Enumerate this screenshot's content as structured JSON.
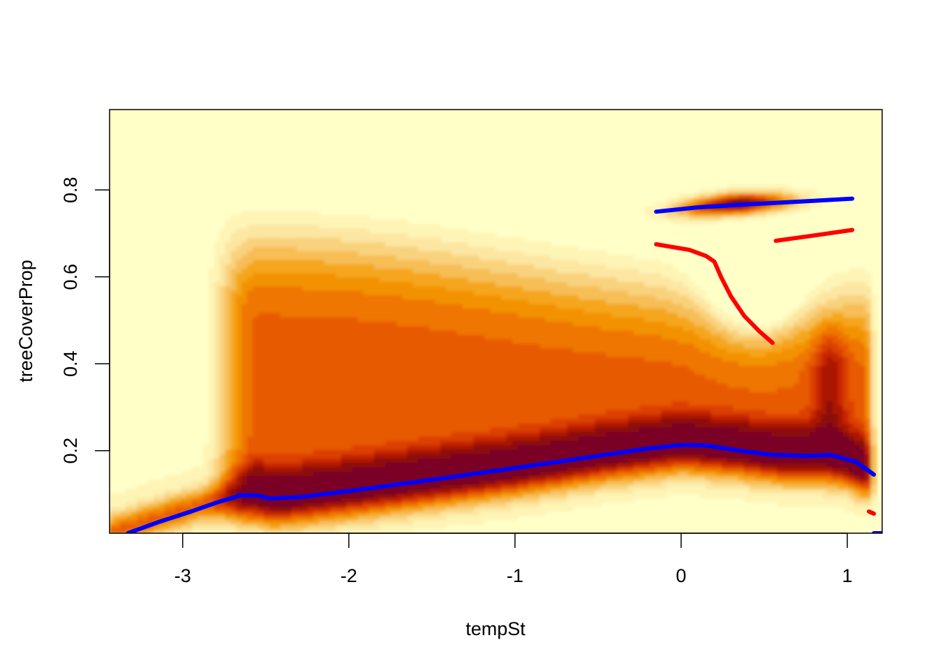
{
  "chart_data": {
    "type": "heatmap",
    "title": "",
    "xlabel": "tempSt",
    "ylabel": "treeCoverProp",
    "xlim": [
      -3.44,
      1.21
    ],
    "ylim": [
      0.01,
      0.985
    ],
    "x_ticks": [
      -3,
      -2,
      -1,
      0,
      1
    ],
    "y_ticks": [
      0.2,
      0.4,
      0.6,
      0.8
    ],
    "grid": false,
    "legend": "none",
    "density": {
      "description_levels": "filled contour of conditional density, low = pale yellow, high = dark red",
      "palette": [
        "#FFFFC8",
        "#FEF4B6",
        "#FCE6A2",
        "#F9D27E",
        "#F7BE57",
        "#F5A61F",
        "#F39200",
        "#EF7600",
        "#E75A00",
        "#DB3F00",
        "#C82600",
        "#AB1200",
        "#8B0A10",
        "#7A0025"
      ],
      "lower_ridge": [
        [
          -3.44,
          0.01
        ],
        [
          -3.2,
          0.04
        ],
        [
          -2.95,
          0.07
        ],
        [
          -2.7,
          0.095
        ],
        [
          -2.55,
          0.1
        ],
        [
          -2.45,
          0.09
        ],
        [
          -2.0,
          0.11
        ],
        [
          -1.5,
          0.135
        ],
        [
          -1.0,
          0.16
        ],
        [
          -0.5,
          0.19
        ],
        [
          0.0,
          0.215
        ],
        [
          0.3,
          0.205
        ],
        [
          0.6,
          0.19
        ],
        [
          0.85,
          0.19
        ],
        [
          1.0,
          0.18
        ],
        [
          1.15,
          0.15
        ]
      ],
      "upper_mode": [
        [
          -0.15,
          0.75
        ],
        [
          0.3,
          0.768
        ],
        [
          0.6,
          0.775
        ],
        [
          1.0,
          0.78
        ]
      ]
    },
    "series": [
      {
        "color": "#0000FF",
        "segments": [
          [
            [
              -3.33,
              0.01
            ],
            [
              -3.15,
              0.035
            ],
            [
              -2.95,
              0.06
            ],
            [
              -2.8,
              0.08
            ],
            [
              -2.65,
              0.097
            ],
            [
              -2.55,
              0.097
            ],
            [
              -2.48,
              0.09
            ],
            [
              -2.3,
              0.093
            ],
            [
              -2.0,
              0.107
            ],
            [
              -1.5,
              0.133
            ],
            [
              -1.0,
              0.16
            ],
            [
              -0.5,
              0.188
            ],
            [
              -0.2,
              0.205
            ],
            [
              0.0,
              0.213
            ],
            [
              0.15,
              0.212
            ],
            [
              0.35,
              0.2
            ],
            [
              0.55,
              0.19
            ],
            [
              0.75,
              0.188
            ],
            [
              0.9,
              0.19
            ],
            [
              1.05,
              0.175
            ],
            [
              1.16,
              0.145
            ]
          ],
          [
            [
              -0.15,
              0.75
            ],
            [
              0.1,
              0.76
            ],
            [
              0.4,
              0.767
            ],
            [
              0.7,
              0.773
            ],
            [
              1.03,
              0.78
            ]
          ],
          [
            [
              1.16,
              0.01
            ],
            [
              1.21,
              0.01
            ]
          ]
        ]
      },
      {
        "color": "#FF0000",
        "segments": [
          [
            [
              -0.15,
              0.675
            ],
            [
              0.05,
              0.662
            ],
            [
              0.15,
              0.648
            ],
            [
              0.2,
              0.635
            ],
            [
              0.24,
              0.6
            ],
            [
              0.3,
              0.555
            ],
            [
              0.38,
              0.51
            ],
            [
              0.47,
              0.475
            ],
            [
              0.55,
              0.448
            ]
          ],
          [
            [
              0.57,
              0.683
            ],
            [
              0.7,
              0.69
            ],
            [
              0.85,
              0.698
            ],
            [
              1.03,
              0.708
            ]
          ],
          [
            [
              1.13,
              0.06
            ],
            [
              1.16,
              0.055
            ]
          ]
        ]
      }
    ]
  }
}
